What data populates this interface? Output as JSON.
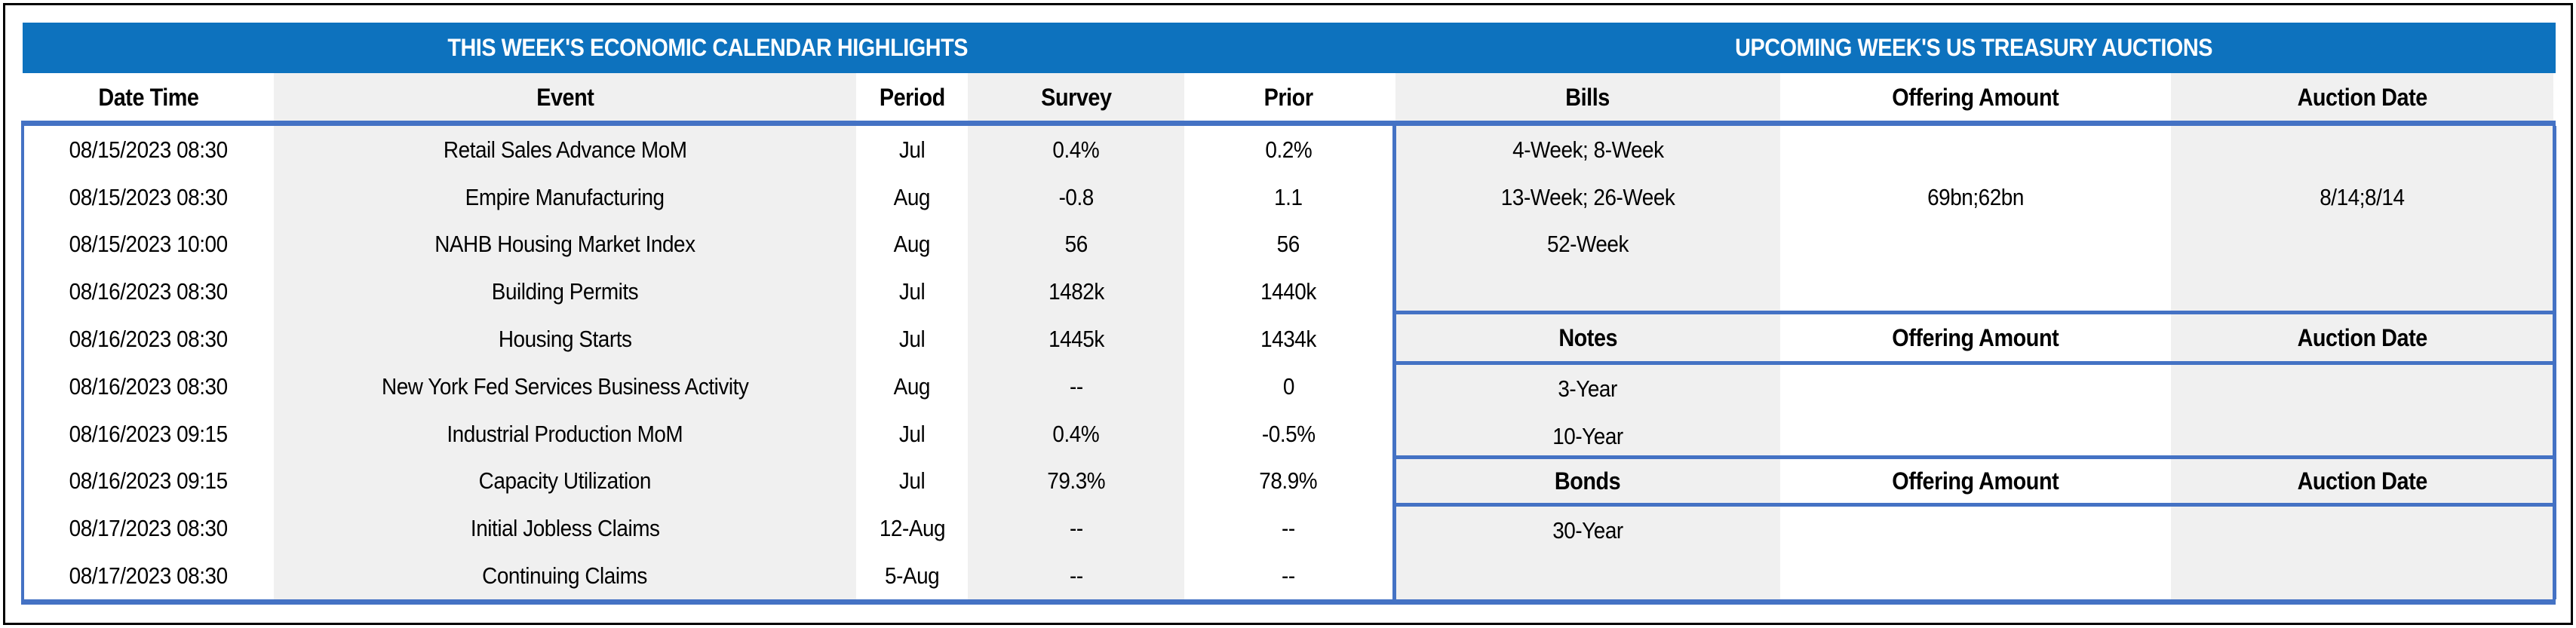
{
  "titles": {
    "left": "THIS WEEK'S ECONOMIC CALENDAR HIGHLIGHTS",
    "right": "UPCOMING WEEK'S US TREASURY AUCTIONS"
  },
  "calendar": {
    "columns": [
      "Date Time",
      "Event",
      "Period",
      "Survey",
      "Prior"
    ],
    "rows": [
      [
        "08/15/2023 08:30",
        "Retail Sales Advance MoM",
        "Jul",
        "0.4%",
        "0.2%"
      ],
      [
        "08/15/2023 08:30",
        "Empire Manufacturing",
        "Aug",
        "-0.8",
        "1.1"
      ],
      [
        "08/15/2023 10:00",
        "NAHB Housing Market Index",
        "Aug",
        "56",
        "56"
      ],
      [
        "08/16/2023 08:30",
        "Building Permits",
        "Jul",
        "1482k",
        "1440k"
      ],
      [
        "08/16/2023 08:30",
        "Housing Starts",
        "Jul",
        "1445k",
        "1434k"
      ],
      [
        "08/16/2023 08:30",
        "New York Fed Services Business Activity",
        "Aug",
        "--",
        "0"
      ],
      [
        "08/16/2023 09:15",
        "Industrial Production MoM",
        "Jul",
        "0.4%",
        "-0.5%"
      ],
      [
        "08/16/2023 09:15",
        "Capacity Utilization",
        "Jul",
        "79.3%",
        "78.9%"
      ],
      [
        "08/17/2023 08:30",
        "Initial Jobless Claims",
        "12-Aug",
        "--",
        "--"
      ],
      [
        "08/17/2023 08:30",
        "Continuing Claims",
        "5-Aug",
        "--",
        "--"
      ]
    ]
  },
  "auctions": {
    "sections": [
      {
        "label": "Bills",
        "columns": [
          "Bills",
          "Offering Amount",
          "Auction Date"
        ],
        "rows": [
          [
            "4-Week; 8-Week",
            "",
            ""
          ],
          [
            "13-Week; 26-Week",
            "69bn;62bn",
            "8/14;8/14"
          ],
          [
            "52-Week",
            "",
            ""
          ]
        ]
      },
      {
        "label": "Notes",
        "columns": [
          "Notes",
          "Offering Amount",
          "Auction Date"
        ],
        "rows": [
          [
            "3-Year",
            "",
            ""
          ],
          [
            "10-Year",
            "",
            ""
          ]
        ]
      },
      {
        "label": "Bonds",
        "columns": [
          "Bonds",
          "Offering Amount",
          "Auction Date"
        ],
        "rows": [
          [
            "30-Year",
            "",
            ""
          ]
        ]
      }
    ]
  },
  "colors": {
    "band_blue": "#0d72be",
    "rule_blue": "#4472c4",
    "stripe_grey": "#f0f0f0",
    "text": "#000000"
  }
}
